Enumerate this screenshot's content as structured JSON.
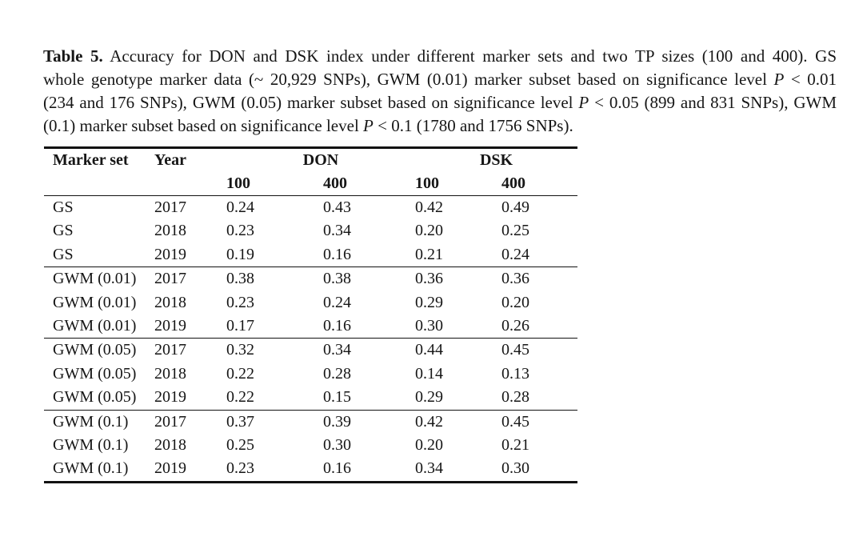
{
  "page": {
    "background": "#ffffff",
    "text_color": "#161616",
    "rule_color": "#121212"
  },
  "caption": {
    "lines": [
      [
        {
          "text": "Table 5.",
          "style": "bold"
        },
        {
          "text": " Accuracy for DON and DSK index under different marker sets and two TP sizes (100 and 400). GS",
          "style": "normal"
        }
      ],
      [
        {
          "text": "whole genotype marker data (~ 20,929 SNPs), GWM (0.01) marker subset based on significance level ",
          "style": "normal"
        },
        {
          "text": "P",
          "style": "italic"
        },
        {
          "text": " < 0.01",
          "style": "normal"
        }
      ],
      [
        {
          "text": "(234 and 176 SNPs), GWM (0.05) marker subset based on significance level ",
          "style": "normal"
        },
        {
          "text": "P",
          "style": "italic"
        },
        {
          "text": " < 0.05 (899 and 831 SNPs), GWM",
          "style": "normal"
        }
      ],
      [
        {
          "text": "(0.1) marker subset based on significance level ",
          "style": "normal"
        },
        {
          "text": "P",
          "style": "italic"
        },
        {
          "text": " < 0.1 (1780 and 1756 SNPs).",
          "style": "normal"
        }
      ]
    ]
  },
  "table": {
    "headers": {
      "marker_set": "Marker set",
      "year": "Year",
      "don": "DON",
      "dsk": "DSK",
      "sub": [
        "100",
        "400",
        "100",
        "400"
      ]
    },
    "groups": [
      [
        [
          "GS",
          "2017",
          "0.24",
          "0.43",
          "0.42",
          "0.49"
        ],
        [
          "GS",
          "2018",
          "0.23",
          "0.34",
          "0.20",
          "0.25"
        ],
        [
          "GS",
          "2019",
          "0.19",
          "0.16",
          "0.21",
          "0.24"
        ]
      ],
      [
        [
          "GWM (0.01)",
          "2017",
          "0.38",
          "0.38",
          "0.36",
          "0.36"
        ],
        [
          "GWM (0.01)",
          "2018",
          "0.23",
          "0.24",
          "0.29",
          "0.20"
        ],
        [
          "GWM (0.01)",
          "2019",
          "0.17",
          "0.16",
          "0.30",
          "0.26"
        ]
      ],
      [
        [
          "GWM (0.05)",
          "2017",
          "0.32",
          "0.34",
          "0.44",
          "0.45"
        ],
        [
          "GWM (0.05)",
          "2018",
          "0.22",
          "0.28",
          "0.14",
          "0.13"
        ],
        [
          "GWM (0.05)",
          "2019",
          "0.22",
          "0.15",
          "0.29",
          "0.28"
        ]
      ],
      [
        [
          "GWM (0.1)",
          "2017",
          "0.37",
          "0.39",
          "0.42",
          "0.45"
        ],
        [
          "GWM (0.1)",
          "2018",
          "0.25",
          "0.30",
          "0.20",
          "0.21"
        ],
        [
          "GWM (0.1)",
          "2019",
          "0.23",
          "0.16",
          "0.34",
          "0.30"
        ]
      ]
    ]
  }
}
